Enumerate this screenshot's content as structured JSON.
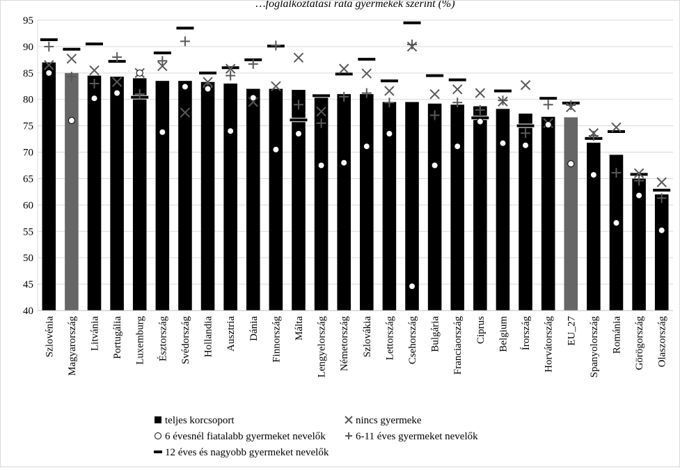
{
  "chart_data": {
    "type": "bar",
    "title": "…foglalkoztatási ráta gyermekek szerint (%)",
    "xlabel": "",
    "ylabel": "",
    "ylim": [
      40,
      95
    ],
    "yticks": [
      40,
      45,
      50,
      55,
      60,
      65,
      70,
      75,
      80,
      85,
      90,
      95
    ],
    "grid": true,
    "legend_position": "bottom",
    "colors": {
      "bar": "#000000",
      "bar_highlight": "#666666",
      "marker": "#595959",
      "grid": "#d9d9d9"
    },
    "highlighted_categories": [
      "Magyarország",
      "EU_27"
    ],
    "categories": [
      "Szlovénia",
      "Magyarország",
      "Litvánia",
      "Portugália",
      "Luxemburg",
      "Észtország",
      "Svédország",
      "Hollandia",
      "Ausztria",
      "Dánia",
      "Finnország",
      "Málta",
      "Lengyelország",
      "Németország",
      "Szlovákia",
      "Lettország",
      "Csehország",
      "Bulgária",
      "Franciaország",
      "Ciprus",
      "Belgium",
      "Írország",
      "Horvátország",
      "EU_27",
      "Spanyolország",
      "Románia",
      "Görögország",
      "Olaszország"
    ],
    "series": [
      {
        "name": "teljes korcsoport",
        "marker": "bar",
        "values": [
          87.0,
          85.0,
          84.5,
          84.3,
          84.0,
          83.5,
          83.5,
          83.3,
          83.0,
          82.0,
          82.0,
          81.8,
          81.0,
          81.0,
          81.0,
          79.5,
          79.5,
          79.2,
          79.0,
          78.7,
          78.2,
          77.3,
          76.7,
          76.6,
          71.8,
          69.5,
          65.0,
          62.0
        ]
      },
      {
        "name": "nincs gyermeke",
        "marker": "x",
        "values": [
          86.5,
          87.7,
          85.5,
          83.3,
          85.0,
          86.3,
          77.5,
          83.3,
          85.8,
          79.5,
          82.5,
          87.9,
          77.7,
          85.8,
          84.9,
          81.6,
          90.0,
          81.0,
          81.9,
          81.2,
          79.6,
          82.7,
          75.5,
          78.5,
          73.6,
          74.7,
          66.0,
          64.3
        ]
      },
      {
        "name": "6 évesnél fiatalabb gyermeket nevelők",
        "marker": "circle",
        "values": [
          85.0,
          76.0,
          80.2,
          81.2,
          85.0,
          73.8,
          82.4,
          82.0,
          74.0,
          80.3,
          70.5,
          73.5,
          67.5,
          68.0,
          71.1,
          73.5,
          44.6,
          67.5,
          71.1,
          75.8,
          71.7,
          71.3,
          75.2,
          67.8,
          65.7,
          56.6,
          61.8,
          55.2
        ]
      },
      {
        "name": "6-11 éves  gyermeket nevelők",
        "marker": "plus",
        "values": [
          90.0,
          84.3,
          83.0,
          88.0,
          81.0,
          87.3,
          91.0,
          82.3,
          84.5,
          86.7,
          90.2,
          79.0,
          75.5,
          80.5,
          81.2,
          79.4,
          90.4,
          77.0,
          79.4,
          78.0,
          79.8,
          73.6,
          79.0,
          78.9,
          73.1,
          66.1,
          64.6,
          61.3
        ]
      },
      {
        "name": "12 éves és nagyobb gyermeket nevelők",
        "marker": "dash",
        "values": [
          91.3,
          89.5,
          90.5,
          87.2,
          80.4,
          88.8,
          93.5,
          85.0,
          86.0,
          87.5,
          90.1,
          76.1,
          80.7,
          84.8,
          87.6,
          83.5,
          94.5,
          84.5,
          83.7,
          76.5,
          81.6,
          75.0,
          80.2,
          79.3,
          72.6,
          73.9,
          65.8,
          62.8
        ]
      }
    ]
  }
}
